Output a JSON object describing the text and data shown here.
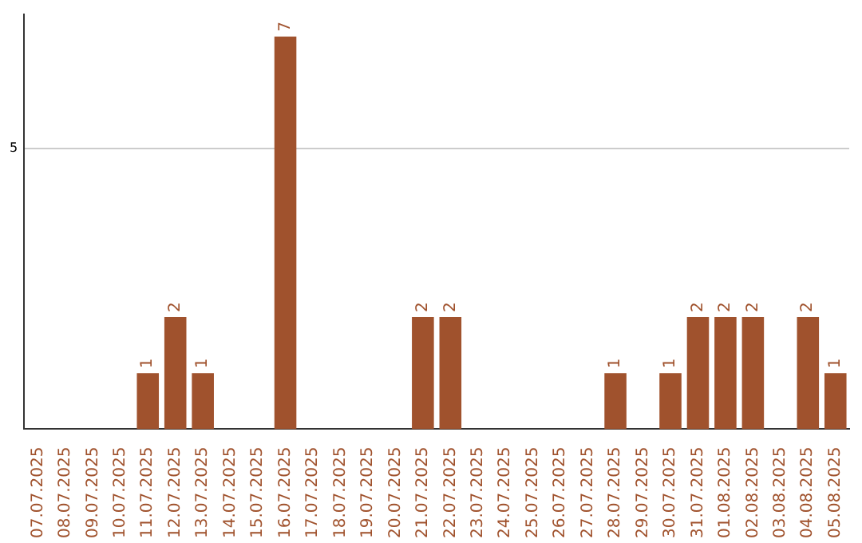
{
  "chart_data": {
    "type": "bar",
    "categories": [
      "07.07.2025",
      "08.07.2025",
      "09.07.2025",
      "10.07.2025",
      "11.07.2025",
      "12.07.2025",
      "13.07.2025",
      "14.07.2025",
      "15.07.2025",
      "16.07.2025",
      "17.07.2025",
      "18.07.2025",
      "19.07.2025",
      "20.07.2025",
      "21.07.2025",
      "22.07.2025",
      "23.07.2025",
      "24.07.2025",
      "25.07.2025",
      "26.07.2025",
      "27.07.2025",
      "28.07.2025",
      "29.07.2025",
      "30.07.2025",
      "31.07.2025",
      "01.08.2025",
      "02.08.2025",
      "03.08.2025",
      "04.08.2025",
      "05.08.2025"
    ],
    "values": [
      0,
      0,
      0,
      0,
      1,
      2,
      1,
      0,
      0,
      7,
      0,
      0,
      0,
      0,
      2,
      2,
      0,
      0,
      0,
      0,
      0,
      1,
      0,
      1,
      2,
      2,
      2,
      0,
      2,
      1
    ],
    "value_labels": [
      null,
      null,
      null,
      null,
      "1",
      "2",
      "1",
      null,
      null,
      "7",
      null,
      null,
      null,
      null,
      "2",
      "2",
      null,
      null,
      null,
      null,
      null,
      "1",
      null,
      "1",
      "2",
      "2",
      "2",
      null,
      "2",
      "1"
    ],
    "color": "#a0522d",
    "ylim": [
      0,
      7.4
    ],
    "yticks": [
      5
    ],
    "grid": "y",
    "legend": false
  }
}
